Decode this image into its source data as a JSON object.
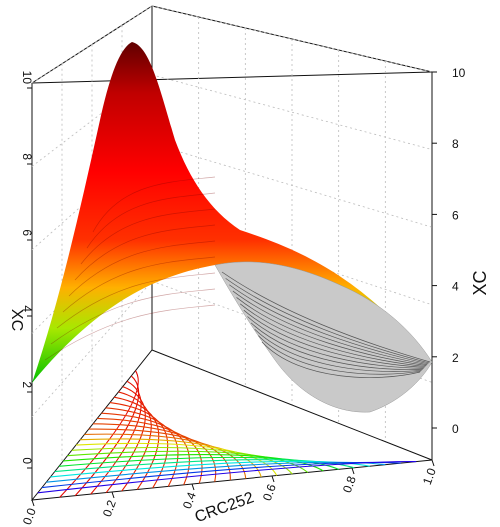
{
  "chart_data": {
    "type": "ternary-surface-3d",
    "axes": {
      "left_vertical": {
        "label": "XC",
        "ticks": [
          "0",
          "2",
          "4",
          "6",
          "8",
          "10"
        ],
        "range": [
          0,
          10
        ]
      },
      "right_vertical": {
        "label": "XC",
        "ticks": [
          "0",
          "2",
          "4",
          "6",
          "8",
          "10"
        ],
        "range": [
          0,
          10
        ]
      },
      "base_front": {
        "label": "CRC252",
        "ticks": [
          "0.0",
          "0.2",
          "0.4",
          "0.6",
          "0.8",
          "1.0"
        ],
        "range": [
          0,
          1
        ]
      }
    },
    "surface": {
      "peak_z": 10,
      "colormap": [
        "#00b000",
        "#d8f000",
        "#ff9000",
        "#ff0000",
        "#6a0000"
      ]
    },
    "contour_levels": 24,
    "grid": true
  }
}
